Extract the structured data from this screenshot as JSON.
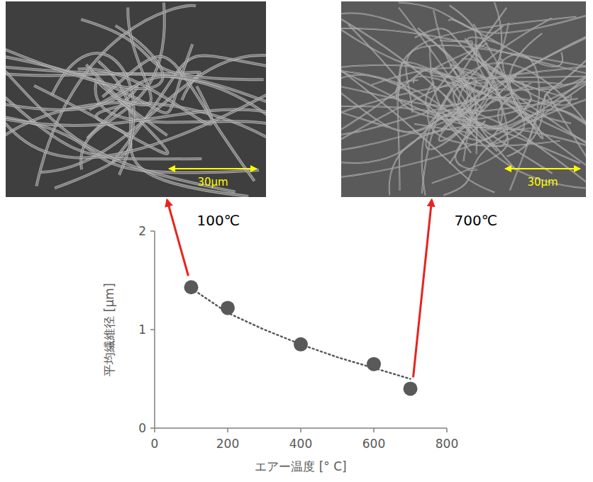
{
  "chart_data": {
    "type": "scatter",
    "x_label": "エアー温度 [° C]",
    "y_label": "平均繊維径 [μm]",
    "xlim": [
      0,
      800
    ],
    "xticks": [
      0,
      200,
      400,
      600,
      800
    ],
    "ylim": [
      0,
      2
    ],
    "yticks": [
      0,
      1,
      2
    ],
    "grid": false,
    "series": [
      {
        "type": "scatter",
        "marker": "circle",
        "color": "#595959",
        "x": [
          100,
          200,
          400,
          600,
          700
        ],
        "values": [
          1.43,
          1.22,
          0.85,
          0.65,
          0.4
        ]
      },
      {
        "type": "line",
        "line_style": "dotted",
        "color": "#595959",
        "x": [
          100,
          200,
          300,
          400,
          500,
          600,
          700
        ],
        "values": [
          1.42,
          1.17,
          1.0,
          0.85,
          0.72,
          0.61,
          0.5
        ]
      }
    ],
    "annotations": [
      {
        "text": "100℃",
        "x": 100,
        "scale_bar_label": "30μm"
      },
      {
        "text": "700℃",
        "x": 700,
        "scale_bar_label": "30μm"
      }
    ]
  }
}
